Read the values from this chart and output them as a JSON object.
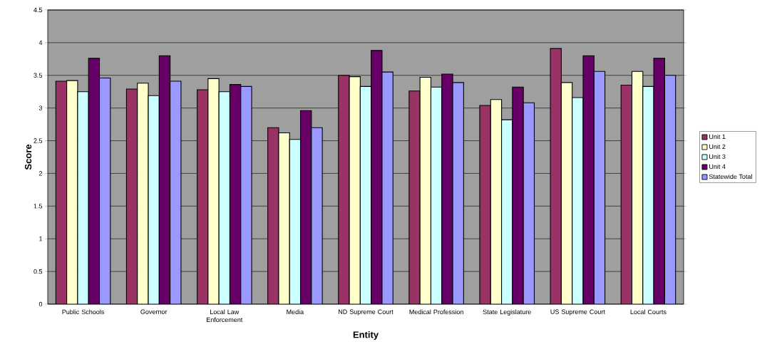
{
  "chart_data": {
    "type": "bar",
    "xlabel": "Entity",
    "ylabel": "Score",
    "categories": [
      "Public Schools",
      "Governor",
      "Local Law Enforcement",
      "Media",
      "ND Supreme Court",
      "Medical Profession",
      "State Legislature",
      "US Supreme Court",
      "Local Courts"
    ],
    "series": [
      {
        "name": "Unit 1",
        "color": "#993366",
        "values": [
          3.41,
          3.29,
          3.28,
          2.7,
          3.5,
          3.26,
          3.04,
          3.91,
          3.35
        ]
      },
      {
        "name": "Unit 2",
        "color": "#ffffcc",
        "values": [
          3.42,
          3.38,
          3.45,
          2.62,
          3.48,
          3.47,
          3.13,
          3.39,
          3.56
        ]
      },
      {
        "name": "Unit 3",
        "color": "#ccffff",
        "values": [
          3.25,
          3.19,
          3.25,
          2.52,
          3.33,
          3.32,
          2.82,
          3.16,
          3.33
        ]
      },
      {
        "name": "Unit 4",
        "color": "#660066",
        "values": [
          3.76,
          3.8,
          3.36,
          2.96,
          3.88,
          3.52,
          3.32,
          3.8,
          3.76
        ]
      },
      {
        "name": "Statewide Total",
        "color": "#9999ff",
        "values": [
          3.46,
          3.41,
          3.33,
          2.7,
          3.55,
          3.39,
          3.08,
          3.56,
          3.5
        ]
      }
    ],
    "ylim": [
      0,
      4.5
    ],
    "yticks": [
      0,
      0.5,
      1,
      1.5,
      2,
      2.5,
      3,
      3.5,
      4,
      4.5
    ],
    "grid": "y",
    "legend": "right"
  }
}
